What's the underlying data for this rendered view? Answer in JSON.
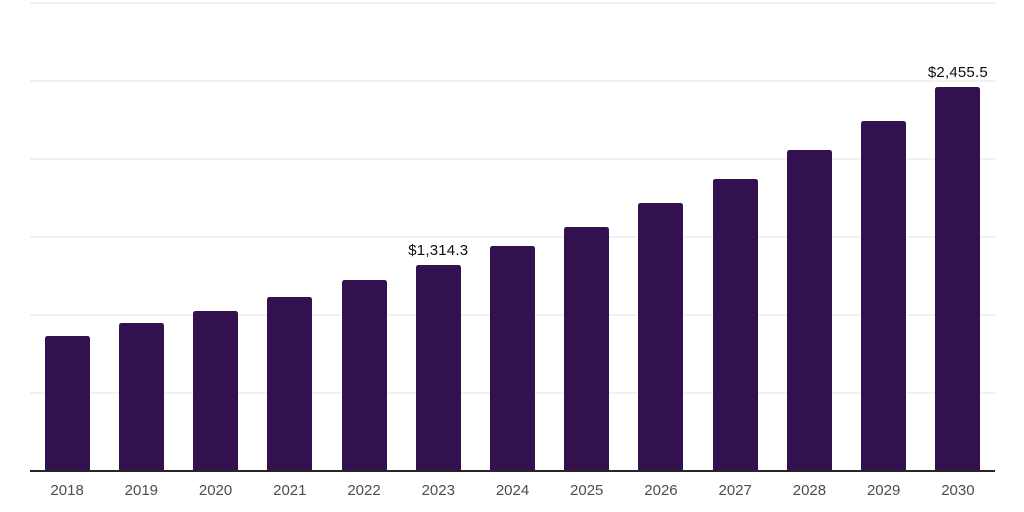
{
  "chart": {
    "background_color": "#ffffff"
  },
  "chart_data": {
    "type": "bar",
    "title": "",
    "xlabel": "",
    "ylabel": "",
    "categories": [
      "2018",
      "2019",
      "2020",
      "2021",
      "2022",
      "2023",
      "2024",
      "2025",
      "2026",
      "2027",
      "2028",
      "2029",
      "2030"
    ],
    "values": [
      860,
      941,
      1017,
      1110,
      1218,
      1314.3,
      1435,
      1560,
      1710,
      1868,
      2052,
      2240,
      2455.5
    ],
    "value_labels": [
      "",
      "",
      "",
      "",
      "",
      "$1,314.3",
      "",
      "",
      "",
      "",
      "",
      "",
      "$2,455.5"
    ],
    "ylim": [
      0,
      3000
    ],
    "gridline_values": [
      0,
      500,
      1000,
      1500,
      2000,
      2500,
      3000
    ],
    "grid": "horizontal",
    "legend": "none",
    "y_axis_tick_labels": "none",
    "bar_color": "#33114F",
    "gridline_color": "#f2f2f2",
    "axis_line_color": "#262626",
    "x_tick_label_color": "#4d4d4d",
    "value_label_color": "#0d0d0d"
  }
}
